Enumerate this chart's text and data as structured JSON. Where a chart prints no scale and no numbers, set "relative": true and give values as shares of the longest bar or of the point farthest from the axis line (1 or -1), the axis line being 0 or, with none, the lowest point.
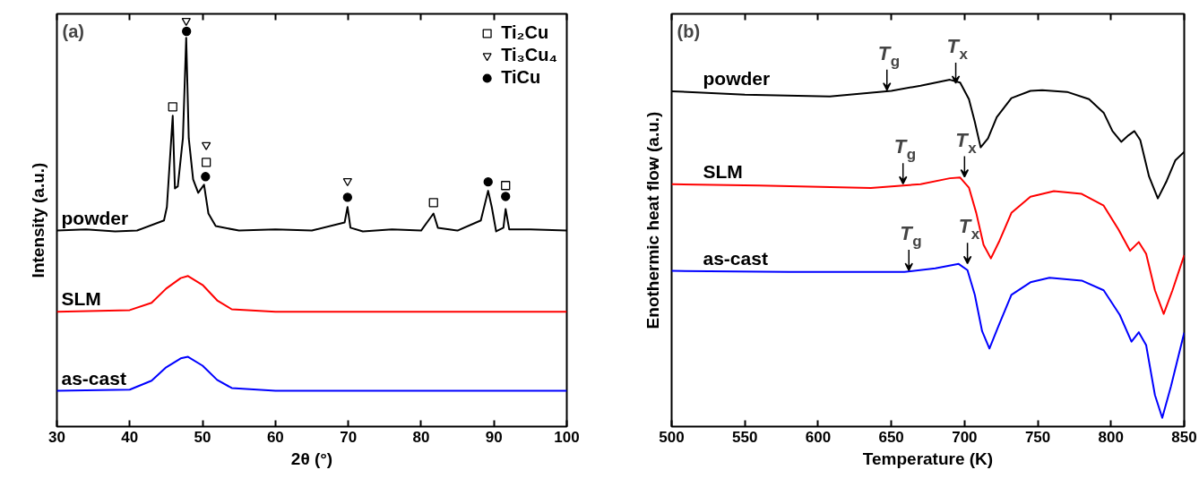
{
  "chart_data": [
    {
      "type": "line",
      "title": "(a)",
      "xlabel": "2θ (°)",
      "ylabel": "Intensity (a.u.)",
      "relative": true,
      "xlim": [
        30,
        100
      ],
      "xticks": [
        30,
        40,
        50,
        60,
        70,
        80,
        90,
        100
      ],
      "grid": false,
      "legend": "top right",
      "tick_labels": "x",
      "series": [
        {
          "name": "powder",
          "color": "#000000",
          "x": [
            30,
            34,
            38,
            41,
            44.7,
            45.1,
            45.9,
            46.2,
            46.6,
            47.3,
            47.75,
            48.1,
            48.7,
            49.4,
            50.2,
            50.8,
            51.8,
            55,
            60,
            65,
            69.5,
            69.9,
            70.3,
            72,
            76,
            80,
            81.7,
            82.3,
            85,
            88.2,
            89.2,
            89.7,
            90.3,
            91.3,
            91.6,
            92.1,
            95,
            100
          ],
          "values": [
            0.483,
            0.486,
            0.481,
            0.483,
            0.508,
            0.541,
            0.766,
            0.587,
            0.592,
            0.711,
            0.958,
            0.711,
            0.609,
            0.576,
            0.596,
            0.525,
            0.494,
            0.483,
            0.486,
            0.483,
            0.503,
            0.541,
            0.49,
            0.481,
            0.486,
            0.483,
            0.525,
            0.49,
            0.483,
            0.508,
            0.581,
            0.541,
            0.481,
            0.49,
            0.536,
            0.486,
            0.486,
            0.483
          ]
        },
        {
          "name": "SLM",
          "color": "#ff0000",
          "x": [
            30,
            40,
            43,
            45,
            47,
            48,
            50,
            52,
            54,
            60,
            70,
            80,
            90,
            100
          ],
          "values": [
            0.283,
            0.287,
            0.305,
            0.34,
            0.366,
            0.371,
            0.349,
            0.311,
            0.289,
            0.283,
            0.283,
            0.283,
            0.283,
            0.283
          ]
        },
        {
          "name": "as-cast",
          "color": "#0000ff",
          "x": [
            30,
            40,
            43,
            45,
            47,
            48,
            50,
            52,
            54,
            60,
            70,
            80,
            90,
            100
          ],
          "values": [
            0.088,
            0.091,
            0.113,
            0.146,
            0.168,
            0.172,
            0.15,
            0.115,
            0.095,
            0.088,
            0.088,
            0.088,
            0.088,
            0.088
          ]
        },
        {
          "type": "scatter",
          "name": "Ti₂Cu",
          "color": "#000000",
          "marker": "square",
          "x": [
            45.9,
            50.5,
            81.7,
            91.6
          ],
          "values": [
            0.788,
            0.651,
            0.552,
            0.594
          ]
        },
        {
          "type": "scatter",
          "name": "Ti₃Cu₄",
          "color": "#000000",
          "marker": "triangle",
          "x": [
            47.75,
            50.5,
            69.9
          ],
          "values": [
            1.0,
            0.694,
            0.605
          ]
        },
        {
          "type": "scatter",
          "name": "TiCu",
          "color": "#000000",
          "marker": "circle",
          "x": [
            47.8,
            50.4,
            69.9,
            89.2,
            91.6
          ],
          "values": [
            0.974,
            0.616,
            0.565,
            0.603,
            0.567
          ]
        }
      ]
    },
    {
      "type": "line",
      "title": "(b)",
      "xlabel": "Temperature (K)",
      "ylabel": "Enothermic heat flow (a.u.)",
      "relative": true,
      "xlim": [
        500,
        850
      ],
      "xticks": [
        500,
        550,
        600,
        650,
        700,
        750,
        800,
        850
      ],
      "grid": false,
      "tick_labels": "x",
      "series": [
        {
          "name": "powder",
          "color": "#000000",
          "x": [
            500,
            550,
            608,
            650,
            670,
            690,
            697,
            703,
            707,
            711,
            716,
            722,
            732,
            745,
            753,
            770,
            785,
            795,
            801,
            807,
            812,
            816,
            820,
            826,
            832,
            838,
            844,
            850
          ],
          "values": [
            0.967,
            0.957,
            0.952,
            0.968,
            0.983,
            1.0,
            0.992,
            0.944,
            0.879,
            0.805,
            0.831,
            0.892,
            0.947,
            0.968,
            0.97,
            0.965,
            0.944,
            0.905,
            0.852,
            0.821,
            0.84,
            0.852,
            0.826,
            0.721,
            0.658,
            0.708,
            0.768,
            0.792
          ]
        },
        {
          "name": "SLM",
          "color": "#ff0000",
          "x": [
            500,
            560,
            636,
            670,
            690,
            697,
            703,
            708,
            713,
            718,
            724,
            732,
            745,
            761,
            780,
            795,
            805,
            813,
            819,
            824,
            830,
            836,
            842,
            850
          ],
          "values": [
            0.699,
            0.695,
            0.688,
            0.699,
            0.716,
            0.718,
            0.689,
            0.616,
            0.524,
            0.485,
            0.537,
            0.616,
            0.663,
            0.679,
            0.671,
            0.637,
            0.569,
            0.507,
            0.532,
            0.498,
            0.393,
            0.325,
            0.393,
            0.494
          ]
        },
        {
          "name": "as-cast",
          "color": "#0000ff",
          "x": [
            500,
            580,
            659,
            680,
            696,
            702,
            707,
            712,
            717,
            723,
            732,
            745,
            758,
            780,
            795,
            806,
            814,
            819,
            824,
            830,
            835,
            841,
            850
          ],
          "values": [
            0.449,
            0.446,
            0.446,
            0.456,
            0.469,
            0.451,
            0.38,
            0.275,
            0.225,
            0.288,
            0.38,
            0.416,
            0.429,
            0.421,
            0.393,
            0.322,
            0.245,
            0.272,
            0.235,
            0.091,
            0.025,
            0.117,
            0.271
          ]
        }
      ],
      "annotations": [
        {
          "text": "T$_{g}$",
          "x": 647,
          "y": 0.97
        },
        {
          "text": "T$_{x}$",
          "x": 694,
          "y": 0.99
        },
        {
          "text": "T$_{g}$",
          "x": 658,
          "y": 0.7
        },
        {
          "text": "T$_{x}$",
          "x": 700,
          "y": 0.72
        },
        {
          "text": "T$_{g}$",
          "x": 662,
          "y": 0.45
        },
        {
          "text": "T$_{x}$",
          "x": 702,
          "y": 0.47
        }
      ]
    }
  ]
}
